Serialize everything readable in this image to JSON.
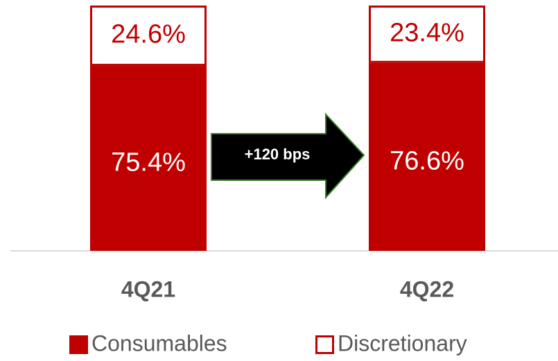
{
  "chart_data": {
    "type": "stacked_bar",
    "categories": [
      "4Q21",
      "4Q22"
    ],
    "series": [
      {
        "name": "Consumables",
        "color": "#c00000",
        "fill": "#c00000",
        "label_color": "#ffffff",
        "values": [
          75.4,
          76.6
        ],
        "value_labels": [
          "75.4%",
          "76.6%"
        ]
      },
      {
        "name": "Discretionary",
        "color": "#c00000",
        "fill": "#ffffff",
        "label_color": "#c00000",
        "values": [
          24.6,
          23.4
        ],
        "value_labels": [
          "24.6%",
          "23.4%"
        ]
      }
    ],
    "ylim": [
      0,
      100
    ],
    "annotation": "+120 bps"
  }
}
